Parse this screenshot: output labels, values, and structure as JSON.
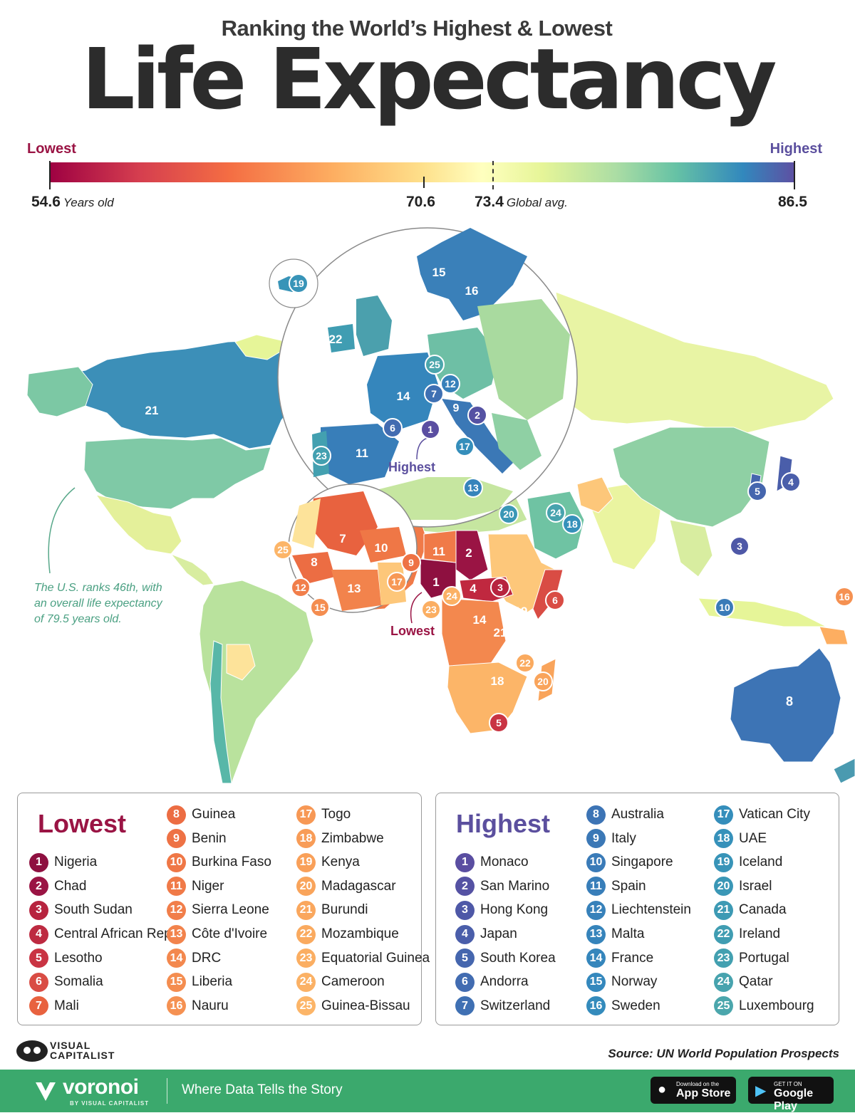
{
  "header": {
    "subtitle": "Ranking the World’s Highest & Lowest",
    "title": "Life Expectancy"
  },
  "scale": {
    "low_label": "Lowest",
    "high_label": "Highest",
    "min_value": "54.6",
    "min_unit": "Years old",
    "mid_value": "70.6",
    "avg_value": "73.4",
    "avg_label": "Global avg.",
    "max_value": "86.5",
    "colors": [
      "#9e0142",
      "#f46d43",
      "#fee08b",
      "#abdda4",
      "#3288bd",
      "#5e4fa2"
    ]
  },
  "map": {
    "annotation_highest": "Highest",
    "annotation_lowest": "Lowest",
    "us_note_1": "The U.S. ranks 46th, with",
    "us_note_2": "an overall life expectancy",
    "us_note_3": "of 79.5 years old."
  },
  "lowest": {
    "title": "Lowest",
    "items": [
      {
        "rank": "1",
        "name": "Nigeria",
        "color": "#8e1040"
      },
      {
        "rank": "2",
        "name": "Chad",
        "color": "#9a1444"
      },
      {
        "rank": "3",
        "name": "South Sudan",
        "color": "#b7243f"
      },
      {
        "rank": "4",
        "name": "Central African Rep",
        "color": "#bd2a41"
      },
      {
        "rank": "5",
        "name": "Lesotho",
        "color": "#c93443"
      },
      {
        "rank": "6",
        "name": "Somalia",
        "color": "#d94c44"
      },
      {
        "rank": "7",
        "name": "Mali",
        "color": "#e8623f"
      },
      {
        "rank": "8",
        "name": "Guinea",
        "color": "#ec6d43"
      },
      {
        "rank": "9",
        "name": "Benin",
        "color": "#ee7245"
      },
      {
        "rank": "10",
        "name": "Burkina Faso",
        "color": "#ef7746"
      },
      {
        "rank": "11",
        "name": "Niger",
        "color": "#f07a48"
      },
      {
        "rank": "12",
        "name": "Sierra Leone",
        "color": "#f17e4a"
      },
      {
        "rank": "13",
        "name": "Côte d'Ivoire",
        "color": "#f2834c"
      },
      {
        "rank": "14",
        "name": "DRC",
        "color": "#f3884e"
      },
      {
        "rank": "15",
        "name": "Liberia",
        "color": "#f48d50"
      },
      {
        "rank": "16",
        "name": "Nauru",
        "color": "#f59152"
      },
      {
        "rank": "17",
        "name": "Togo",
        "color": "#f79855"
      },
      {
        "rank": "18",
        "name": "Zimbabwe",
        "color": "#f89c57"
      },
      {
        "rank": "19",
        "name": "Kenya",
        "color": "#f9a059"
      },
      {
        "rank": "20",
        "name": "Madagascar",
        "color": "#f9a45b"
      },
      {
        "rank": "21",
        "name": "Burundi",
        "color": "#faa75d"
      },
      {
        "rank": "22",
        "name": "Mozambique",
        "color": "#faaa5f"
      },
      {
        "rank": "23",
        "name": "Equatorial Guinea",
        "color": "#fbae62"
      },
      {
        "rank": "24",
        "name": "Cameroon",
        "color": "#fbb165"
      },
      {
        "rank": "25",
        "name": "Guinea-Bissau",
        "color": "#fcb568"
      }
    ]
  },
  "highest": {
    "title": "Highest",
    "items": [
      {
        "rank": "1",
        "name": "Monaco",
        "color": "#5a4ea1"
      },
      {
        "rank": "2",
        "name": "San Marino",
        "color": "#5552a3"
      },
      {
        "rank": "3",
        "name": "Hong Kong",
        "color": "#4e58a7"
      },
      {
        "rank": "4",
        "name": "Japan",
        "color": "#4a5eaa"
      },
      {
        "rank": "5",
        "name": "South Korea",
        "color": "#4566ae"
      },
      {
        "rank": "6",
        "name": "Andorra",
        "color": "#426cb1"
      },
      {
        "rank": "7",
        "name": "Switzerland",
        "color": "#3f70b3"
      },
      {
        "rank": "8",
        "name": "Australia",
        "color": "#3d74b5"
      },
      {
        "rank": "9",
        "name": "Italy",
        "color": "#3b78b6"
      },
      {
        "rank": "10",
        "name": "Singapore",
        "color": "#3a7bb8"
      },
      {
        "rank": "11",
        "name": "Spain",
        "color": "#387eb9"
      },
      {
        "rank": "12",
        "name": "Liechtenstein",
        "color": "#3781ba"
      },
      {
        "rank": "13",
        "name": "Malta",
        "color": "#3684bb"
      },
      {
        "rank": "14",
        "name": "France",
        "color": "#3586bc"
      },
      {
        "rank": "15",
        "name": "Norway",
        "color": "#3488bd"
      },
      {
        "rank": "16",
        "name": "Sweden",
        "color": "#348bbc"
      },
      {
        "rank": "17",
        "name": "Vatican City",
        "color": "#358ebb"
      },
      {
        "rank": "18",
        "name": "UAE",
        "color": "#3691ba"
      },
      {
        "rank": "19",
        "name": "Iceland",
        "color": "#3894b8"
      },
      {
        "rank": "20",
        "name": "Israel",
        "color": "#3a97b6"
      },
      {
        "rank": "21",
        "name": "Canada",
        "color": "#3d9ab4"
      },
      {
        "rank": "22",
        "name": "Ireland",
        "color": "#409db2"
      },
      {
        "rank": "23",
        "name": "Portugal",
        "color": "#43a0b0"
      },
      {
        "rank": "24",
        "name": "Qatar",
        "color": "#47a3ae"
      },
      {
        "rank": "25",
        "name": "Luxembourg",
        "color": "#4ba6ac"
      }
    ]
  },
  "footer": {
    "brand_line_1": "VISUAL",
    "brand_line_2": "CAPITALIST",
    "source": "Source: UN World Population Prospects",
    "voronoi": "voronoi",
    "voronoi_sub": "BY VISUAL CAPITALIST",
    "tagline": "Where Data Tells the Story",
    "appstore_small": "Download on the",
    "appstore_big": "App Store",
    "googleplay_small": "GET IT ON",
    "googleplay_big": "Google Play"
  }
}
